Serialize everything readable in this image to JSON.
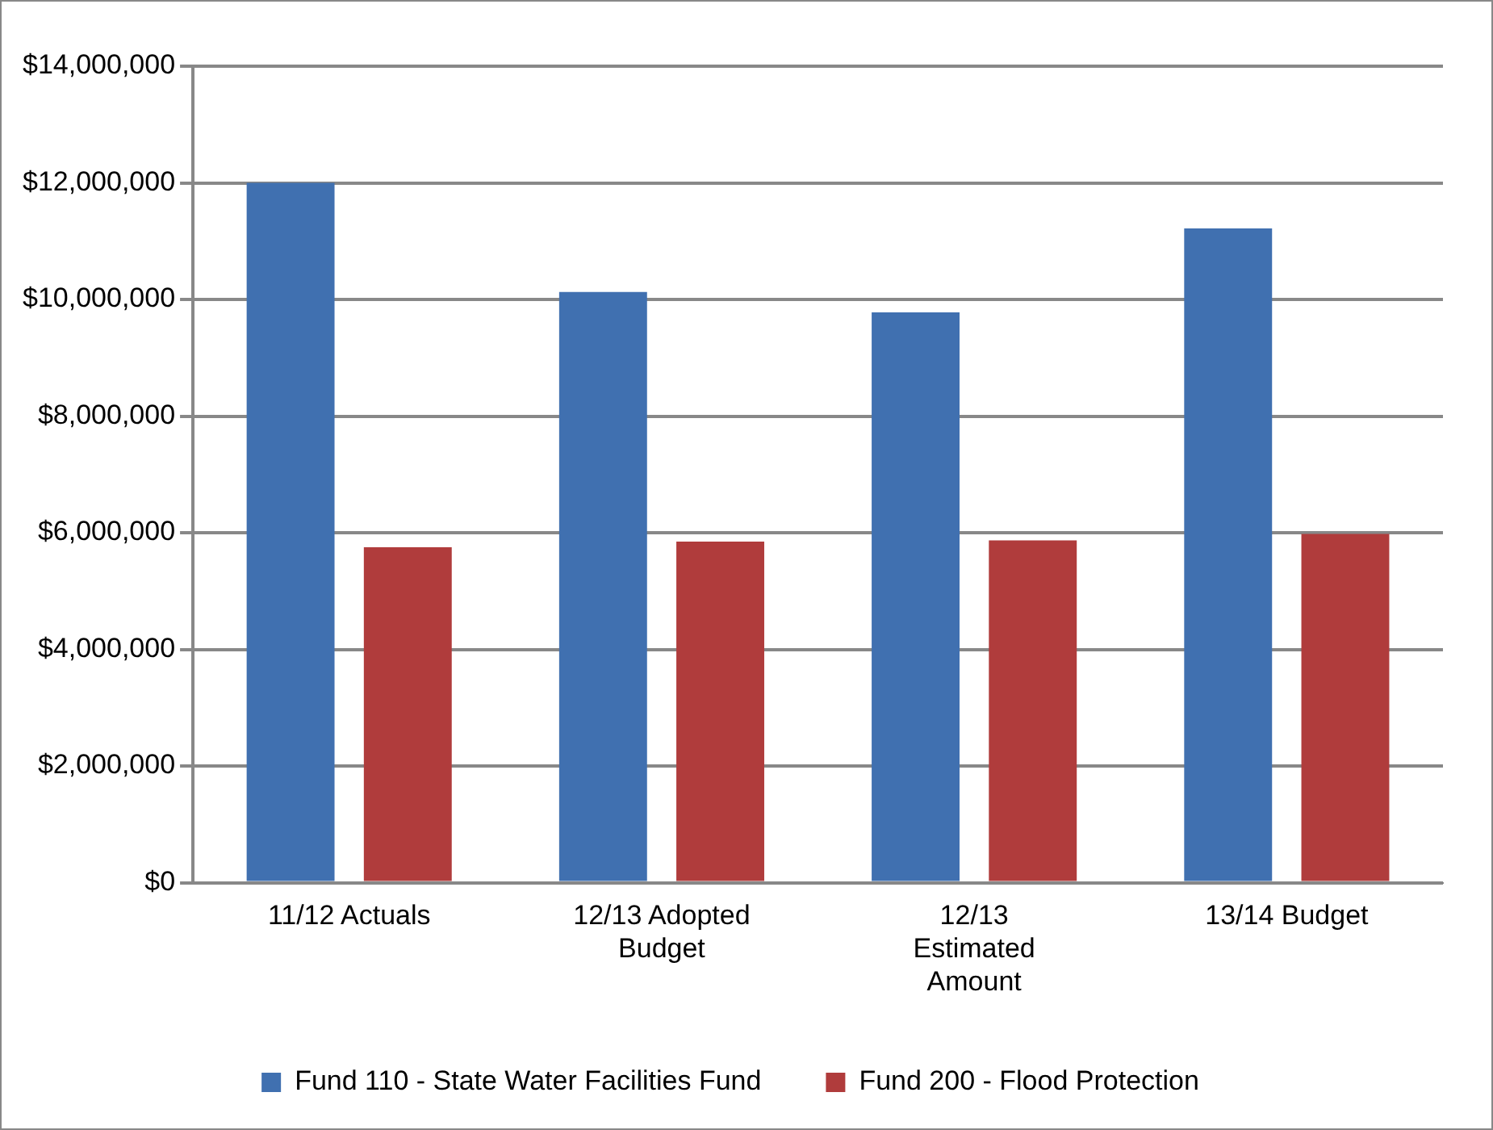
{
  "chart_data": {
    "type": "bar",
    "categories": [
      "11/12 Actuals",
      "12/13 Adopted Budget",
      "12/13 Estimated Amount",
      "13/14 Budget"
    ],
    "series": [
      {
        "name": "Fund 110 - State Water Facilities Fund",
        "color": "#4070b0",
        "values": [
          12000000,
          10130000,
          9780000,
          11220000
        ]
      },
      {
        "name": "Fund 200 - Flood Protection",
        "color": "#b03c3c",
        "values": [
          5750000,
          5850000,
          5870000,
          5980000
        ]
      }
    ],
    "ylim": [
      0,
      14000000
    ],
    "yticks": [
      {
        "value": 0,
        "label": "$0"
      },
      {
        "value": 2000000,
        "label": "$2,000,000"
      },
      {
        "value": 4000000,
        "label": "$4,000,000"
      },
      {
        "value": 6000000,
        "label": "$6,000,000"
      },
      {
        "value": 8000000,
        "label": "$8,000,000"
      },
      {
        "value": 10000000,
        "label": "$10,000,000"
      },
      {
        "value": 12000000,
        "label": "$12,000,000"
      },
      {
        "value": 14000000,
        "label": "$14,000,000"
      }
    ],
    "grid": "y",
    "legend": "bottom"
  }
}
